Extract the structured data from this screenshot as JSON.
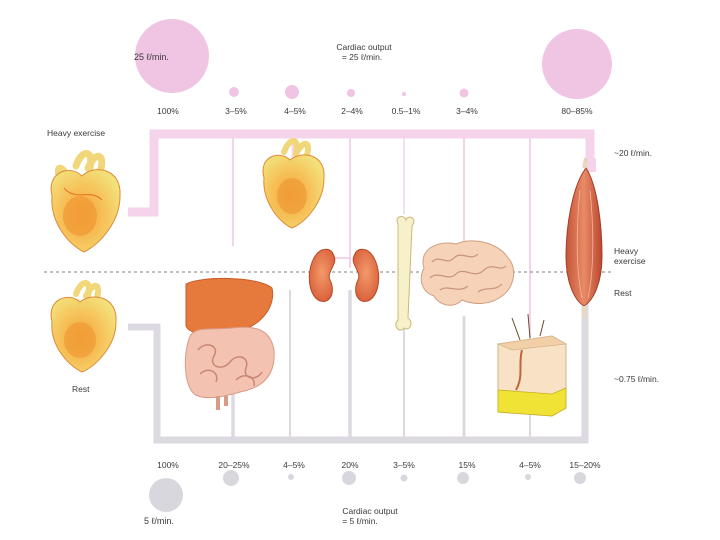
{
  "exercise": {
    "total_flow": "25 ℓ/min.",
    "cardiac_output_line1": "Cardiac output",
    "cardiac_output_line2": "= 25 ℓ/min.",
    "pct": [
      "100%",
      "3–5%",
      "4–5%",
      "2–4%",
      "0.5–1%",
      "3–4%",
      "80–85%"
    ],
    "side_label": "Heavy exercise",
    "muscle_flow": "~20 ℓ/min."
  },
  "rest": {
    "total_flow": "5 ℓ/min.",
    "cardiac_output_line1": "Cardiac output",
    "cardiac_output_line2": "= 5 ℓ/min.",
    "pct": [
      "100%",
      "20–25%",
      "4–5%",
      "20%",
      "3–5%",
      "15%",
      "4–5%",
      "15–20%"
    ],
    "side_label": "Rest",
    "muscle_flow": "~0.75 ℓ/min."
  },
  "divider": {
    "upper_label_line1": "Heavy",
    "upper_label_line2": "exercise",
    "lower_label": "Rest"
  },
  "colors": {
    "exercise_pipe": "#f5d3ea",
    "exercise_circle": "#f0c4e3",
    "rest_pipe": "#dcdae0",
    "rest_circle": "#d9d7de"
  }
}
